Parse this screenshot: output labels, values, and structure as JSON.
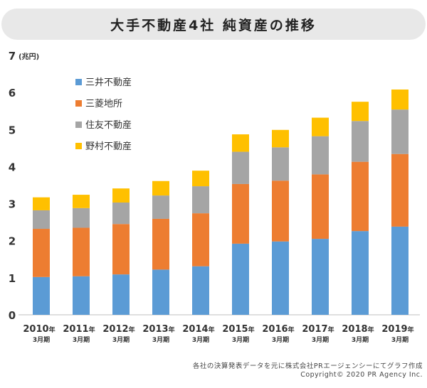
{
  "title": "大手不動産4社 純資産の推移",
  "chart_data": {
    "type": "bar",
    "stacked": true,
    "title": "大手不動産4社 純資産の推移",
    "ylabel_top": "7",
    "yunit": "(兆円)",
    "ylim": [
      0,
      7
    ],
    "yticks": [
      0,
      1,
      2,
      3,
      4,
      5,
      6
    ],
    "categories": [
      "2010",
      "2011",
      "2012",
      "2013",
      "2014",
      "2015",
      "2016",
      "2017",
      "2018",
      "2019"
    ],
    "year_suffix": "年",
    "month_label": "3月期",
    "series": [
      {
        "name": "三井不動産",
        "color": "#5b9bd5",
        "values": [
          1.02,
          1.04,
          1.09,
          1.22,
          1.31,
          1.92,
          1.98,
          2.05,
          2.26,
          2.38
        ]
      },
      {
        "name": "三菱地所",
        "color": "#ed7d31",
        "values": [
          1.3,
          1.31,
          1.36,
          1.37,
          1.43,
          1.61,
          1.64,
          1.74,
          1.87,
          1.96
        ]
      },
      {
        "name": "住友不動産",
        "color": "#a5a5a5",
        "values": [
          0.5,
          0.53,
          0.58,
          0.63,
          0.73,
          0.87,
          0.9,
          1.03,
          1.1,
          1.2
        ]
      },
      {
        "name": "野村不動産",
        "color": "#ffc000",
        "values": [
          0.35,
          0.36,
          0.38,
          0.39,
          0.42,
          0.47,
          0.47,
          0.5,
          0.52,
          0.54
        ]
      }
    ],
    "legend_position": "top-left",
    "grid": false
  },
  "footer": {
    "line1": "各社の決算発表データを元に株式会社PRエージェンシーにてグラフ作成",
    "line2": "Copyright© 2020 PR Agency Inc."
  }
}
